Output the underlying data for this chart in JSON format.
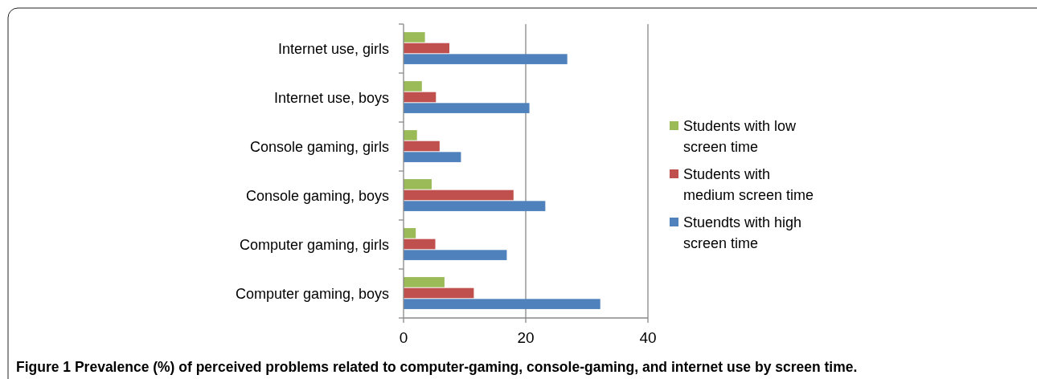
{
  "chart_data": {
    "type": "bar",
    "orientation": "horizontal",
    "title": "Figure 1 Prevalence (%) of perceived problems related to computer-gaming, console-gaming, and internet use by screen time.",
    "categories": [
      "Internet use, girls",
      "Internet use, boys",
      "Console gaming, girls",
      "Console gaming, boys",
      "Computer gaming, girls",
      "Computer gaming, boys"
    ],
    "series": [
      {
        "name": "Students with low screen time",
        "color": "#9bbb59",
        "values": [
          3.5,
          3.0,
          2.2,
          4.6,
          2.0,
          6.7
        ]
      },
      {
        "name": "Students with medium screen time",
        "color": "#c0504d",
        "values": [
          7.5,
          5.3,
          5.9,
          18.0,
          5.2,
          11.5
        ]
      },
      {
        "name": "Stuendts with high screen time",
        "color": "#4f81bd",
        "values": [
          26.8,
          20.6,
          9.4,
          23.2,
          16.9,
          32.2
        ]
      }
    ],
    "xlim": [
      0,
      40
    ],
    "xticks": [
      0,
      20,
      40
    ],
    "grid": "x",
    "legend": "right"
  }
}
